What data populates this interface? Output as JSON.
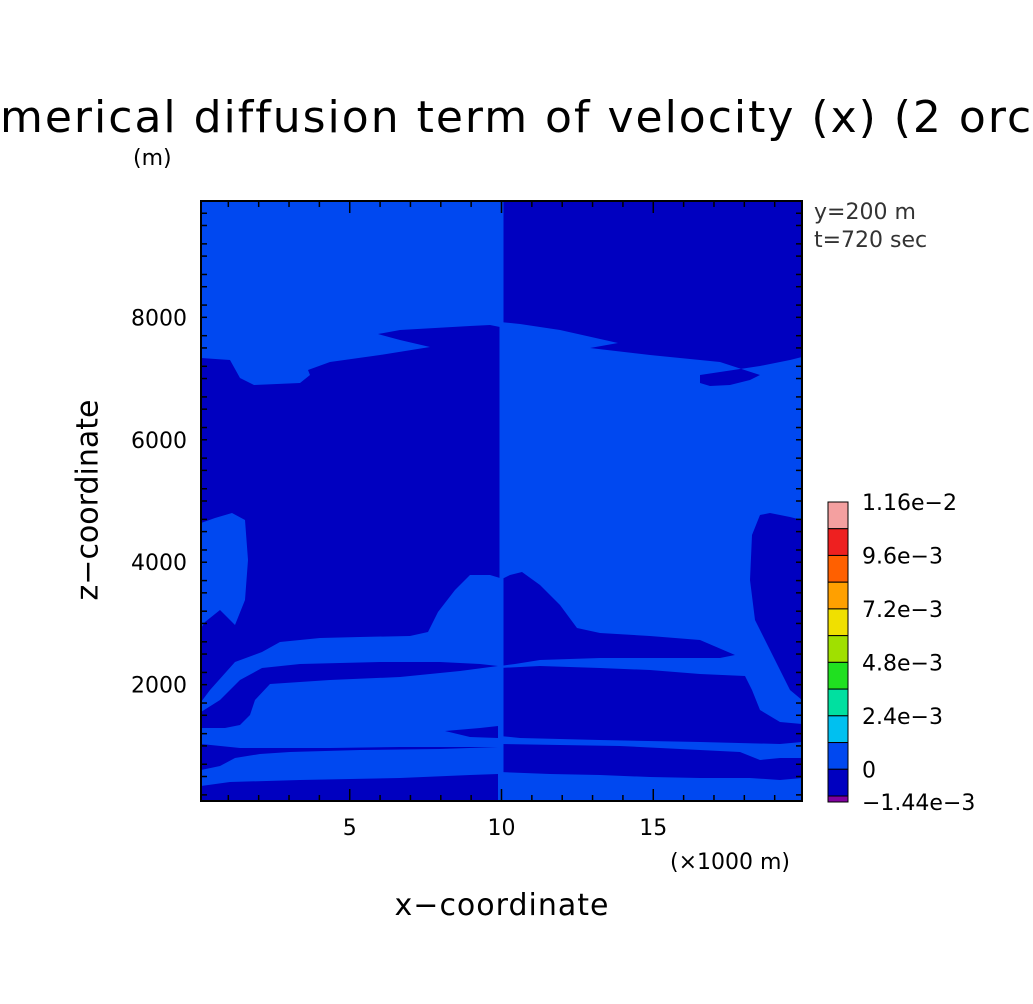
{
  "chart_data": {
    "type": "heatmap",
    "title": "merical diffusion term of velocity (x) (2 orc",
    "xlabel": "x−coordinate",
    "ylabel": "z−coordinate",
    "x_unit": "(×1000 m)",
    "y_unit": "(m)",
    "annotations": [
      "y=200 m",
      "t=720 sec"
    ],
    "xlim": [
      0.1,
      19.9
    ],
    "ylim": [
      100,
      9900
    ],
    "x_ticks": [
      5,
      10,
      15
    ],
    "x_tick_labels": [
      "5",
      "10",
      "15"
    ],
    "y_ticks": [
      2000,
      4000,
      6000,
      8000
    ],
    "y_tick_labels": [
      "2000",
      "4000",
      "6000",
      "8000"
    ],
    "grid": false,
    "colorbar": {
      "position": "right",
      "labels": [
        "1.16e−2",
        "9.6e−3",
        "7.2e−3",
        "4.8e−3",
        "2.4e−3",
        "0",
        "−1.44e−3"
      ],
      "levels": [
        0.0116,
        0.0108,
        0.0096,
        0.0084,
        0.0072,
        0.006,
        0.0048,
        0.0036,
        0.0024,
        0.0012,
        0.0,
        -0.0012,
        -0.00144
      ],
      "colors": [
        "#f4a0a0",
        "#ee2020",
        "#ff6000",
        "#ffa000",
        "#f0e000",
        "#a0e000",
        "#20e020",
        "#00e0a0",
        "#00c0f0",
        "#0048f0",
        "#0000c0",
        "#8000a0"
      ]
    },
    "regions": {
      "light_color": "#0048f0",
      "dark_color": "#0000c0",
      "description_values": {
        "light": "0 to 1.2e-3",
        "dark": "-1.2e-3 to 0"
      }
    }
  }
}
